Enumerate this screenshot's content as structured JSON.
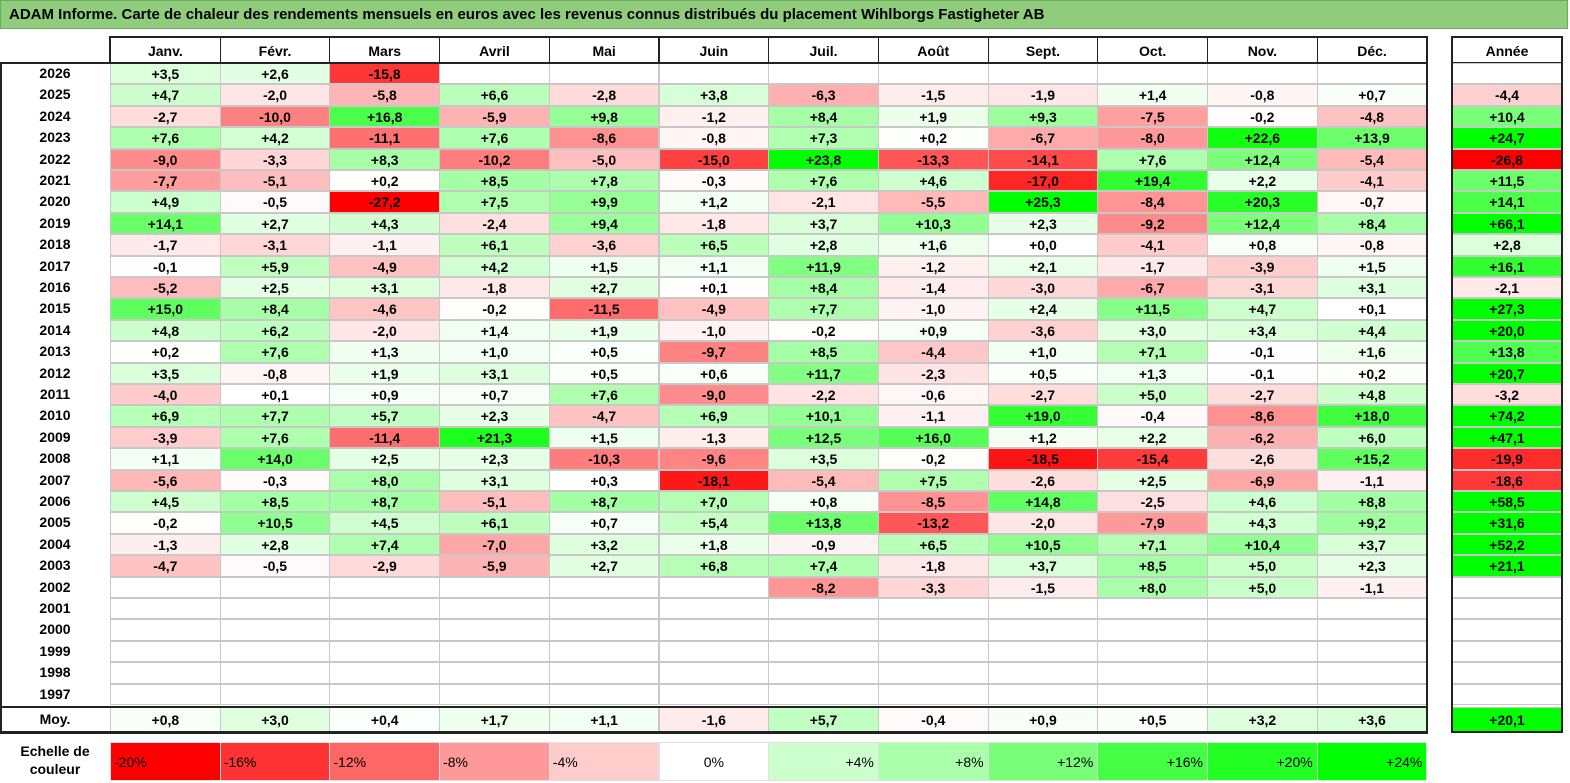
{
  "title": "ADAM Informe. Carte de chaleur des rendements mensuels en euros avec les revenus connus distribués du placement Wihlborgs Fastigheter AB",
  "chart_data": {
    "type": "heatmap",
    "months": [
      "Janv.",
      "Févr.",
      "Mars",
      "Avril",
      "Mai",
      "Juin",
      "Juil.",
      "Août",
      "Sept.",
      "Oct.",
      "Nov.",
      "Déc."
    ],
    "year_column_label": "Année",
    "rows": [
      {
        "year": "2026",
        "values": [
          "+3,5",
          "+2,6",
          "-15,8",
          "",
          "",
          "",
          "",
          "",
          "",
          "",
          "",
          ""
        ],
        "annual": ""
      },
      {
        "year": "2025",
        "values": [
          "+4,7",
          "-2,0",
          "-5,8",
          "+6,6",
          "-2,8",
          "+3,8",
          "-6,3",
          "-1,5",
          "-1,9",
          "+1,4",
          "-0,8",
          "+0,7"
        ],
        "annual": "-4,4"
      },
      {
        "year": "2024",
        "values": [
          "-2,7",
          "-10,0",
          "+16,8",
          "-5,9",
          "+9,8",
          "-1,2",
          "+8,4",
          "+1,9",
          "+9,3",
          "-7,5",
          "-0,2",
          "-4,8"
        ],
        "annual": "+10,4"
      },
      {
        "year": "2023",
        "values": [
          "+7,6",
          "+4,2",
          "-11,1",
          "+7,6",
          "-8,6",
          "-0,8",
          "+7,3",
          "+0,2",
          "-6,7",
          "-8,0",
          "+22,6",
          "+13,9"
        ],
        "annual": "+24,7"
      },
      {
        "year": "2022",
        "values": [
          "-9,0",
          "-3,3",
          "+8,3",
          "-10,2",
          "-5,0",
          "-15,0",
          "+23,8",
          "-13,3",
          "-14,1",
          "+7,6",
          "+12,4",
          "-5,4"
        ],
        "annual": "-26,8"
      },
      {
        "year": "2021",
        "values": [
          "-7,7",
          "-5,1",
          "+0,2",
          "+8,5",
          "+7,8",
          "-0,3",
          "+7,6",
          "+4,6",
          "-17,0",
          "+19,4",
          "+2,2",
          "-4,1"
        ],
        "annual": "+11,5"
      },
      {
        "year": "2020",
        "values": [
          "+4,9",
          "-0,5",
          "-27,2",
          "+7,5",
          "+9,9",
          "+1,2",
          "-2,1",
          "-5,5",
          "+25,3",
          "-8,4",
          "+20,3",
          "-0,7"
        ],
        "annual": "+14,1"
      },
      {
        "year": "2019",
        "values": [
          "+14,1",
          "+2,7",
          "+4,3",
          "-2,4",
          "+9,4",
          "-1,8",
          "+3,7",
          "+10,3",
          "+2,3",
          "-9,2",
          "+12,4",
          "+8,4"
        ],
        "annual": "+66,1"
      },
      {
        "year": "2018",
        "values": [
          "-1,7",
          "-3,1",
          "-1,1",
          "+6,1",
          "-3,6",
          "+6,5",
          "+2,8",
          "+1,6",
          "+0,0",
          "-4,1",
          "+0,8",
          "-0,8"
        ],
        "annual": "+2,8"
      },
      {
        "year": "2017",
        "values": [
          "-0,1",
          "+5,9",
          "-4,9",
          "+4,2",
          "+1,5",
          "+1,1",
          "+11,9",
          "-1,2",
          "+2,1",
          "-1,7",
          "-3,9",
          "+1,5"
        ],
        "annual": "+16,1"
      },
      {
        "year": "2016",
        "values": [
          "-5,2",
          "+2,5",
          "+3,1",
          "-1,8",
          "+2,7",
          "+0,1",
          "+8,4",
          "-1,4",
          "-3,0",
          "-6,7",
          "-3,1",
          "+3,1"
        ],
        "annual": "-2,1"
      },
      {
        "year": "2015",
        "values": [
          "+15,0",
          "+8,4",
          "-4,6",
          "-0,2",
          "-11,5",
          "-4,9",
          "+7,7",
          "-1,0",
          "+2,4",
          "+11,5",
          "+4,7",
          "+0,1"
        ],
        "annual": "+27,3"
      },
      {
        "year": "2014",
        "values": [
          "+4,8",
          "+6,2",
          "-2,0",
          "+1,4",
          "+1,9",
          "-1,0",
          "-0,2",
          "+0,9",
          "-3,6",
          "+3,0",
          "+3,4",
          "+4,4"
        ],
        "annual": "+20,0"
      },
      {
        "year": "2013",
        "values": [
          "+0,2",
          "+7,6",
          "+1,3",
          "+1,0",
          "+0,5",
          "-9,7",
          "+8,5",
          "-4,4",
          "+1,0",
          "+7,1",
          "-0,1",
          "+1,6"
        ],
        "annual": "+13,8"
      },
      {
        "year": "2012",
        "values": [
          "+3,5",
          "-0,8",
          "+1,9",
          "+3,1",
          "+0,5",
          "+0,6",
          "+11,7",
          "-2,3",
          "+0,5",
          "+1,3",
          "-0,1",
          "+0,2"
        ],
        "annual": "+20,7"
      },
      {
        "year": "2011",
        "values": [
          "-4,0",
          "+0,1",
          "+0,9",
          "+0,7",
          "+7,6",
          "-9,0",
          "-2,2",
          "-0,6",
          "-2,7",
          "+5,0",
          "-2,7",
          "+4,8"
        ],
        "annual": "-3,2"
      },
      {
        "year": "2010",
        "values": [
          "+6,9",
          "+7,7",
          "+5,7",
          "+2,3",
          "-4,7",
          "+6,9",
          "+10,1",
          "-1,1",
          "+19,0",
          "-0,4",
          "-8,6",
          "+18,0"
        ],
        "annual": "+74,2"
      },
      {
        "year": "2009",
        "values": [
          "-3,9",
          "+7,6",
          "-11,4",
          "+21,3",
          "+1,5",
          "-1,3",
          "+12,5",
          "+16,0",
          "+1,2",
          "+2,2",
          "-6,2",
          "+6,0"
        ],
        "annual": "+47,1"
      },
      {
        "year": "2008",
        "values": [
          "+1,1",
          "+14,0",
          "+2,5",
          "+2,3",
          "-10,3",
          "-9,6",
          "+3,5",
          "-0,2",
          "-18,5",
          "-15,4",
          "-2,6",
          "+15,2"
        ],
        "annual": "-19,9"
      },
      {
        "year": "2007",
        "values": [
          "-5,6",
          "-0,3",
          "+8,0",
          "+3,1",
          "+0,3",
          "-18,1",
          "-5,4",
          "+7,5",
          "-2,6",
          "+2,5",
          "-6,9",
          "-1,1"
        ],
        "annual": "-18,6"
      },
      {
        "year": "2006",
        "values": [
          "+4,5",
          "+8,5",
          "+8,7",
          "-5,1",
          "+8,7",
          "+7,0",
          "+0,8",
          "-8,5",
          "+14,8",
          "-2,5",
          "+4,6",
          "+8,8"
        ],
        "annual": "+58,5"
      },
      {
        "year": "2005",
        "values": [
          "-0,2",
          "+10,5",
          "+4,5",
          "+6,1",
          "+0,7",
          "+5,4",
          "+13,8",
          "-13,2",
          "-2,0",
          "-7,9",
          "+4,3",
          "+9,2"
        ],
        "annual": "+31,6"
      },
      {
        "year": "2004",
        "values": [
          "-1,3",
          "+2,8",
          "+7,4",
          "-7,0",
          "+3,2",
          "+1,8",
          "-0,9",
          "+6,5",
          "+10,5",
          "+7,1",
          "+10,4",
          "+3,7"
        ],
        "annual": "+52,2"
      },
      {
        "year": "2003",
        "values": [
          "-4,7",
          "-0,5",
          "-2,9",
          "-5,9",
          "+2,7",
          "+6,8",
          "+7,4",
          "-1,8",
          "+3,7",
          "+8,5",
          "+5,0",
          "+2,3"
        ],
        "annual": "+21,1"
      },
      {
        "year": "2002",
        "values": [
          "",
          "",
          "",
          "",
          "",
          "",
          "-8,2",
          "-3,3",
          "-1,5",
          "+8,0",
          "+5,0",
          "-1,1"
        ],
        "annual": ""
      },
      {
        "year": "2001",
        "values": [
          "",
          "",
          "",
          "",
          "",
          "",
          "",
          "",
          "",
          "",
          "",
          ""
        ],
        "annual": ""
      },
      {
        "year": "2000",
        "values": [
          "",
          "",
          "",
          "",
          "",
          "",
          "",
          "",
          "",
          "",
          "",
          ""
        ],
        "annual": ""
      },
      {
        "year": "1999",
        "values": [
          "",
          "",
          "",
          "",
          "",
          "",
          "",
          "",
          "",
          "",
          "",
          ""
        ],
        "annual": ""
      },
      {
        "year": "1998",
        "values": [
          "",
          "",
          "",
          "",
          "",
          "",
          "",
          "",
          "",
          "",
          "",
          ""
        ],
        "annual": ""
      },
      {
        "year": "1997",
        "values": [
          "",
          "",
          "",
          "",
          "",
          "",
          "",
          "",
          "",
          "",
          "",
          ""
        ],
        "annual": ""
      }
    ],
    "average": {
      "label": "Moy.",
      "values": [
        "+0,8",
        "+3,0",
        "+0,4",
        "+1,7",
        "+1,1",
        "-1,6",
        "+5,7",
        "-0,4",
        "+0,9",
        "+0,5",
        "+3,2",
        "+3,6"
      ],
      "annual": "+20,1"
    },
    "color_scale": {
      "label": "Echelle de couleur",
      "stops": [
        "-20%",
        "-16%",
        "-12%",
        "-8%",
        "-4%",
        "0%",
        "+4%",
        "+8%",
        "+12%",
        "+16%",
        "+20%",
        "+24%"
      ],
      "colors": [
        "#ff0000",
        "#ff3333",
        "#ff6666",
        "#ff9999",
        "#ffcccc",
        "#ffffff",
        "#ccffcc",
        "#aaffaa",
        "#77ff77",
        "#44ff44",
        "#22ff22",
        "#00ff00"
      ]
    }
  }
}
